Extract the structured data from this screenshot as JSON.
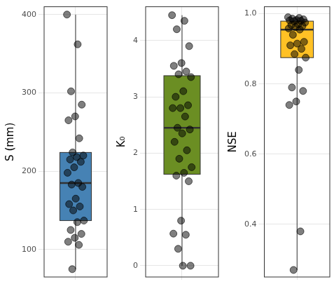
{
  "chart_data": [
    {
      "type": "box",
      "y_label": "S (mm)",
      "color": "#4682b4",
      "values": [
        400,
        362,
        302,
        285,
        270,
        265,
        242,
        224,
        220,
        218,
        215,
        212,
        205,
        198,
        185,
        183,
        180,
        165,
        158,
        155,
        150,
        137,
        135,
        125,
        120,
        115,
        110,
        106,
        75
      ],
      "ylim": [
        65,
        410
      ],
      "yticks": [
        100,
        200,
        300,
        400
      ],
      "grid": true,
      "tick_labels": "y"
    },
    {
      "type": "box",
      "y_label": "K₀",
      "color": "#6b8e23",
      "values": [
        4.45,
        4.35,
        4.2,
        3.9,
        3.6,
        3.55,
        3.45,
        3.4,
        3.35,
        3.1,
        3.0,
        2.85,
        2.8,
        2.8,
        2.65,
        2.45,
        2.42,
        2.35,
        2.2,
        2.05,
        1.9,
        1.75,
        1.65,
        1.6,
        1.5,
        0.8,
        0.57,
        0.55,
        0.3,
        0.0,
        0.0
      ],
      "ylim": [
        -0.2,
        4.6
      ],
      "yticks": [
        0,
        1,
        2,
        3,
        4
      ],
      "grid": true,
      "tick_labels": "y"
    },
    {
      "type": "box",
      "y_label": "NSE",
      "color": "#ffc125",
      "values": [
        0.99,
        0.988,
        0.986,
        0.984,
        0.982,
        0.981,
        0.98,
        0.979,
        0.975,
        0.97,
        0.968,
        0.965,
        0.962,
        0.958,
        0.955,
        0.94,
        0.92,
        0.915,
        0.91,
        0.9,
        0.885,
        0.875,
        0.84,
        0.79,
        0.78,
        0.75,
        0.74,
        0.38,
        0.27
      ],
      "ylim": [
        0.25,
        1.02
      ],
      "yticks": [
        0.4,
        0.6,
        0.8,
        {
          "value": 1,
          "label": "1.0"
        }
      ],
      "grid": true,
      "tick_labels": "y"
    }
  ]
}
